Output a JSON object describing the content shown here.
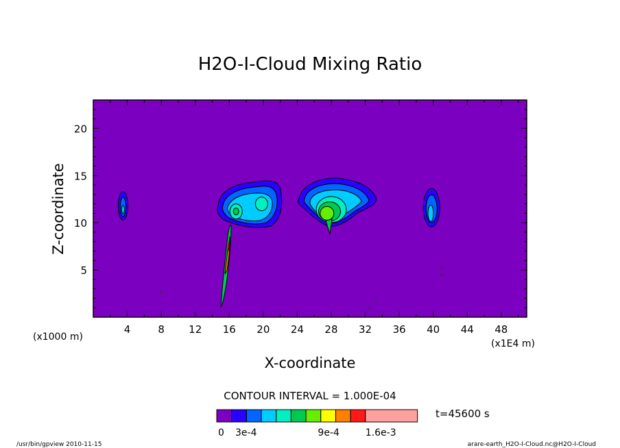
{
  "chart_data": {
    "type": "heatmap",
    "title": "H2O-I-Cloud Mixing Ratio",
    "xlabel": "X-coordinate",
    "ylabel": "Z-coordinate",
    "x_axis_unit_left": "(x1000 m)",
    "x_axis_unit_right": "(x1E4 m)",
    "xlim": [
      0,
      51
    ],
    "ylim": [
      0,
      23
    ],
    "x_ticks": [
      4,
      8,
      12,
      16,
      20,
      24,
      28,
      32,
      36,
      40,
      44,
      48
    ],
    "y_ticks": [
      5,
      10,
      15,
      20
    ],
    "contour_interval_text": "CONTOUR INTERVAL = 1.000E-04",
    "time_text": "t=45600 s",
    "colorbar": {
      "levels": [
        0,
        0.0001,
        0.0002,
        0.0003,
        0.0005,
        0.0007,
        0.0009,
        0.0011,
        0.0013,
        0.0016,
        0.002,
        0.0025
      ],
      "colors": [
        "#7b00c0",
        "#2a00ff",
        "#0066ff",
        "#00ccff",
        "#00f0c0",
        "#00c850",
        "#66ee00",
        "#ffff00",
        "#ff8000",
        "#ff1a1a",
        "#ffa0a0"
      ],
      "tick_labels": [
        "0",
        "3e-4",
        "9e-4",
        "1.6e-3"
      ]
    },
    "background_color": "#7b00c0",
    "cloud_features": [
      {
        "x_center": 3.5,
        "z_center": 11.8,
        "peak": "3e-4"
      },
      {
        "x_center": 18.5,
        "z_center": 12.2,
        "peak": "7e-4"
      },
      {
        "x_center": 28.0,
        "z_center": 12.0,
        "peak": "9e-4"
      },
      {
        "x_center": 39.8,
        "z_center": 11.6,
        "peak": "3e-4"
      },
      {
        "x_center": 15.6,
        "z_center": 5.5,
        "peak": "2e-3"
      }
    ]
  },
  "footer": {
    "left": "/usr/bin/gpview  2010-11-15",
    "right": "arare-earth_H2O-I-Cloud.nc@H2O-I-Cloud"
  },
  "colors": {
    "background": "#7b00c0",
    "frame": "#000000"
  }
}
